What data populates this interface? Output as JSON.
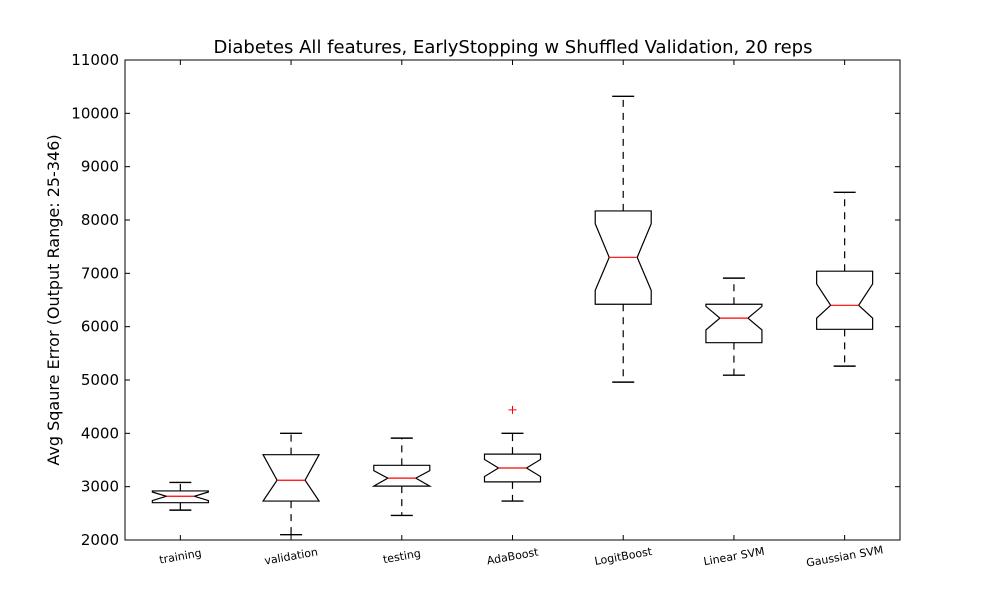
{
  "chart_data": {
    "type": "boxplot",
    "title": "Diabetes All features, EarlyStopping w Shuffled Validation, 20 reps",
    "xlabel": "",
    "ylabel": "Avg Sqaure Error (Output Range: 25-346)",
    "ylim": [
      2000,
      11000
    ],
    "yticks": [
      2000,
      3000,
      4000,
      5000,
      6000,
      7000,
      8000,
      9000,
      10000,
      11000
    ],
    "grid": false,
    "notched": true,
    "box_color": "#000000",
    "median_color": "#ff0000",
    "flier_color": "#ff0000",
    "categories": [
      "training",
      "validation",
      "testing",
      "AdaBoost",
      "LogitBoost",
      "Linear SVM",
      "Gaussian SVM"
    ],
    "boxes": [
      {
        "name": "training",
        "whisker_low": 2560,
        "q1": 2700,
        "median": 2820,
        "q3": 2920,
        "whisker_high": 3080,
        "notch_low": 2740,
        "notch_high": 2900,
        "fliers": []
      },
      {
        "name": "validation",
        "whisker_low": 2100,
        "q1": 2730,
        "median": 3120,
        "q3": 3600,
        "whisker_high": 4000,
        "notch_low": 2730,
        "notch_high": 3600,
        "fliers": []
      },
      {
        "name": "testing",
        "whisker_low": 2460,
        "q1": 3010,
        "median": 3160,
        "q3": 3400,
        "whisker_high": 3910,
        "notch_low": 3010,
        "notch_high": 3300,
        "fliers": []
      },
      {
        "name": "AdaBoost",
        "whisker_low": 2730,
        "q1": 3090,
        "median": 3350,
        "q3": 3610,
        "whisker_high": 4000,
        "notch_low": 3190,
        "notch_high": 3510,
        "fliers": [
          4440
        ]
      },
      {
        "name": "LogitBoost",
        "whisker_low": 4960,
        "q1": 6420,
        "median": 7300,
        "q3": 8170,
        "whisker_high": 10320,
        "notch_low": 6680,
        "notch_high": 7930,
        "fliers": []
      },
      {
        "name": "Linear SVM",
        "whisker_low": 5090,
        "q1": 5700,
        "median": 6160,
        "q3": 6420,
        "whisker_high": 6910,
        "notch_low": 5940,
        "notch_high": 6380,
        "fliers": []
      },
      {
        "name": "Gaussian SVM",
        "whisker_low": 5260,
        "q1": 5950,
        "median": 6400,
        "q3": 7040,
        "whisker_high": 8520,
        "notch_low": 6160,
        "notch_high": 6800,
        "fliers": []
      }
    ]
  }
}
